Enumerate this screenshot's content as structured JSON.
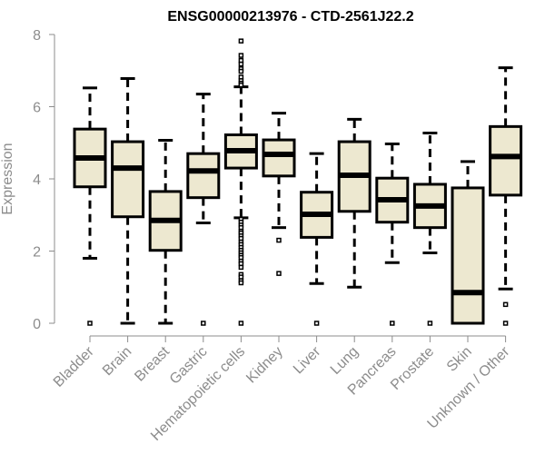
{
  "chart_data": {
    "type": "boxplot",
    "title": "ENSG00000213976 - CTD-2561J22.2",
    "xlabel": "",
    "ylabel": "Expression",
    "ylim": [
      0,
      8
    ],
    "yticks": [
      0,
      2,
      4,
      6,
      8
    ],
    "grid": false,
    "legend": "none",
    "colors": {
      "box_fill": "#ede8d0",
      "box_stroke": "#000000",
      "axis": "#8c8c8c",
      "title": "#000000"
    },
    "categories": [
      "Bladder",
      "Brain",
      "Breast",
      "Gastric",
      "Hematopoietic cells",
      "Kidney",
      "Liver",
      "Lung",
      "Pancreas",
      "Prostate",
      "Skin",
      "Unknown / Other"
    ],
    "boxes": [
      {
        "name": "Bladder",
        "whisker_low": 1.8,
        "q1": 3.78,
        "median": 4.58,
        "q3": 5.38,
        "whisker_high": 6.52,
        "outliers": [
          0
        ]
      },
      {
        "name": "Brain",
        "whisker_low": 0,
        "q1": 2.95,
        "median": 4.3,
        "q3": 5.03,
        "whisker_high": 6.78,
        "outliers": []
      },
      {
        "name": "Breast",
        "whisker_low": 0,
        "q1": 2.02,
        "median": 2.85,
        "q3": 3.65,
        "whisker_high": 5.07,
        "outliers": []
      },
      {
        "name": "Gastric",
        "whisker_low": 2.78,
        "q1": 3.48,
        "median": 4.22,
        "q3": 4.7,
        "whisker_high": 6.35,
        "outliers": [
          0
        ]
      },
      {
        "name": "Hematopoietic cells",
        "whisker_low": 2.92,
        "q1": 4.3,
        "median": 4.78,
        "q3": 5.22,
        "whisker_high": 6.55,
        "outliers": [
          7.82,
          7.42,
          7.28,
          7.18,
          7.05,
          6.98,
          6.82,
          6.72,
          6.65,
          6.6,
          2.88,
          2.8,
          2.72,
          2.65,
          2.55,
          2.5,
          2.42,
          2.35,
          2.25,
          2.18,
          2.1,
          2.02,
          1.95,
          1.88,
          1.82,
          1.72,
          1.65,
          1.55,
          1.35,
          1.28,
          1.18,
          1.12,
          0
        ]
      },
      {
        "name": "Kidney",
        "whisker_low": 2.65,
        "q1": 4.08,
        "median": 4.68,
        "q3": 5.08,
        "whisker_high": 5.82,
        "outliers": [
          2.3,
          1.38
        ]
      },
      {
        "name": "Liver",
        "whisker_low": 1.1,
        "q1": 2.38,
        "median": 3.02,
        "q3": 3.63,
        "whisker_high": 4.7,
        "outliers": [
          0
        ]
      },
      {
        "name": "Lung",
        "whisker_low": 1.0,
        "q1": 3.1,
        "median": 4.1,
        "q3": 5.03,
        "whisker_high": 5.65,
        "outliers": []
      },
      {
        "name": "Pancreas",
        "whisker_low": 1.68,
        "q1": 2.8,
        "median": 3.42,
        "q3": 4.02,
        "whisker_high": 4.97,
        "outliers": [
          0
        ]
      },
      {
        "name": "Prostate",
        "whisker_low": 1.95,
        "q1": 2.65,
        "median": 3.25,
        "q3": 3.85,
        "whisker_high": 5.27,
        "outliers": [
          0
        ]
      },
      {
        "name": "Skin",
        "whisker_low": 0,
        "q1": 0,
        "median": 0.85,
        "q3": 3.75,
        "whisker_high": 4.48,
        "outliers": []
      },
      {
        "name": "Unknown / Other",
        "whisker_low": 0.95,
        "q1": 3.55,
        "median": 4.62,
        "q3": 5.45,
        "whisker_high": 7.08,
        "outliers": [
          0.52,
          0
        ]
      }
    ]
  }
}
